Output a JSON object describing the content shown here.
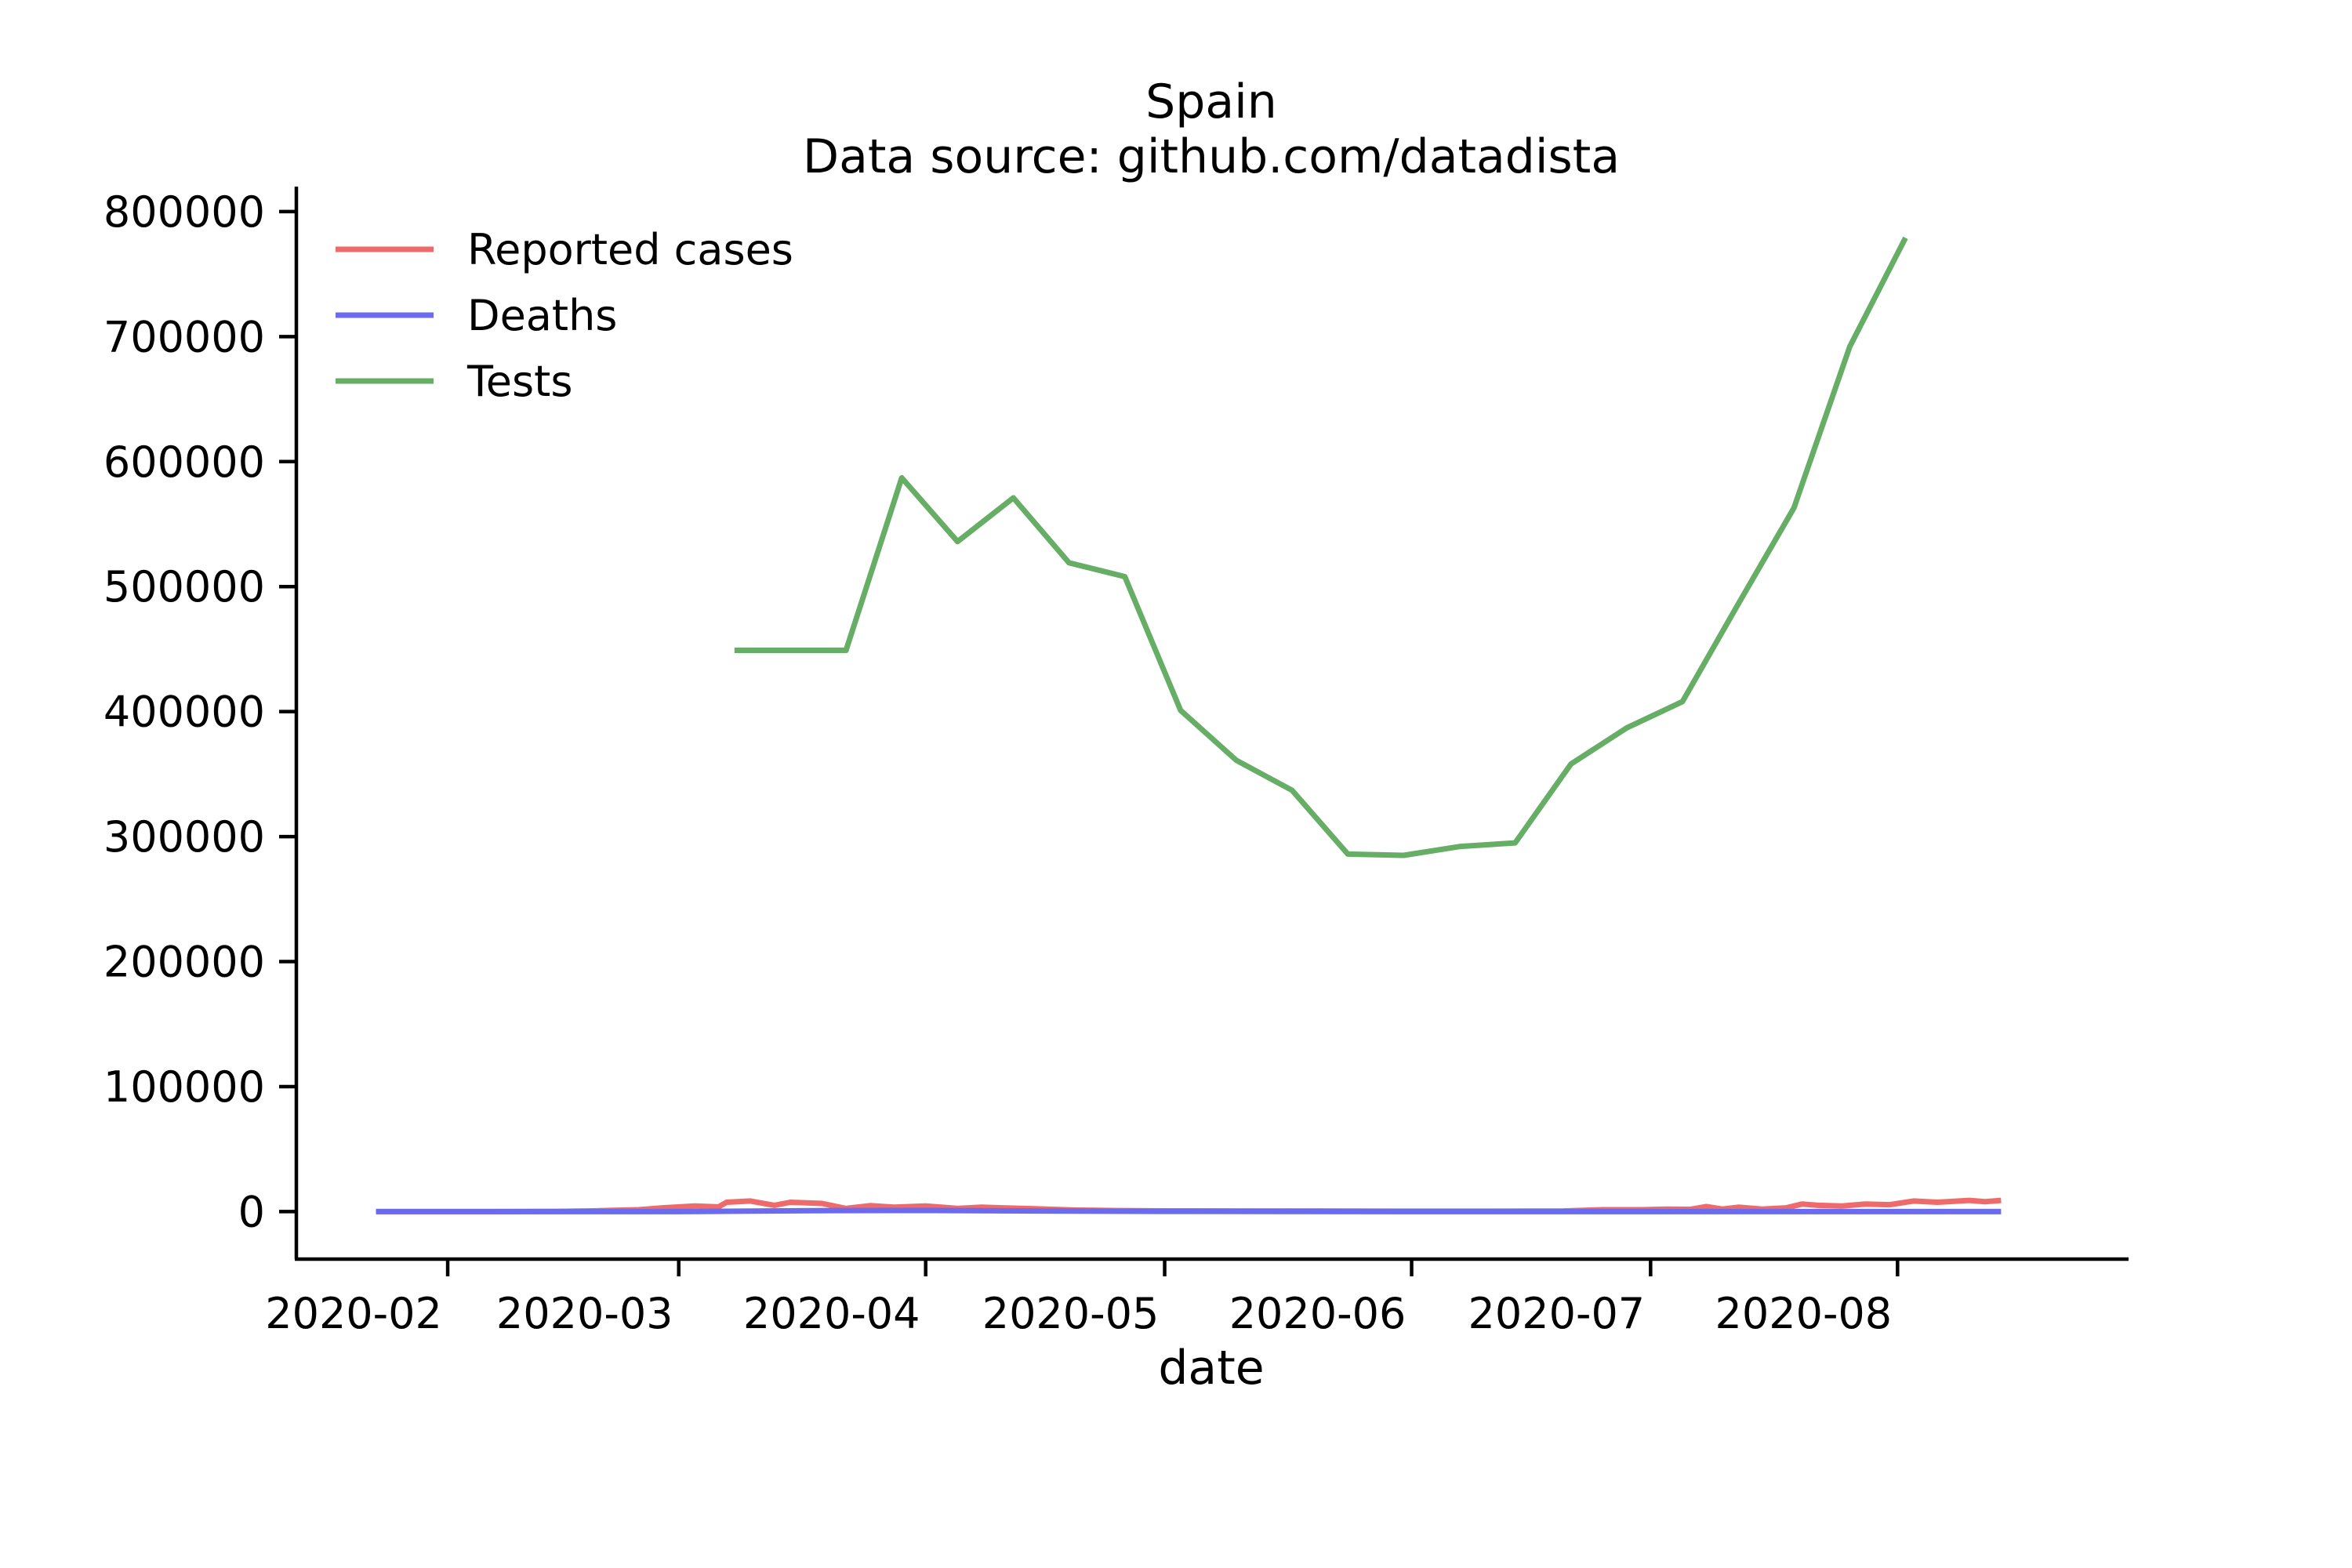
{
  "colors": {
    "reported_cases": "#ef6a6a",
    "deaths": "#6b6bf0",
    "tests": "#66ad66",
    "axis": "#000000"
  },
  "chart_data": {
    "type": "line",
    "title": "Spain",
    "subtitle": "Data source: github.com/datadista",
    "xlabel": "date",
    "ylabel": "",
    "x_axis": {
      "kind": "date",
      "range": [
        "2020-01-13",
        "2020-08-30"
      ],
      "ticks": [
        "2020-02",
        "2020-03",
        "2020-04",
        "2020-05",
        "2020-06",
        "2020-07",
        "2020-08"
      ],
      "tick_dates": [
        "2020-02-01",
        "2020-03-01",
        "2020-04-01",
        "2020-05-01",
        "2020-06-01",
        "2020-07-01",
        "2020-08-01"
      ]
    },
    "y_axis": {
      "range": [
        -38000,
        820000
      ],
      "ticks": [
        0,
        100000,
        200000,
        300000,
        400000,
        500000,
        600000,
        700000,
        800000
      ],
      "tick_labels": [
        "0",
        "100000",
        "200000",
        "300000",
        "400000",
        "500000",
        "600000",
        "700000",
        "800000"
      ]
    },
    "grid": false,
    "legend": {
      "placement": "top-left"
    },
    "series": [
      {
        "name": "Reported cases",
        "color_key": "reported_cases",
        "points": [
          [
            "2020-01-23",
            0
          ],
          [
            "2020-02-05",
            0
          ],
          [
            "2020-02-15",
            200
          ],
          [
            "2020-02-20",
            700
          ],
          [
            "2020-02-25",
            1500
          ],
          [
            "2020-02-28",
            3000
          ],
          [
            "2020-03-03",
            4500
          ],
          [
            "2020-03-06",
            3800
          ],
          [
            "2020-03-07",
            7500
          ],
          [
            "2020-03-10",
            8500
          ],
          [
            "2020-03-13",
            5000
          ],
          [
            "2020-03-15",
            7500
          ],
          [
            "2020-03-19",
            6500
          ],
          [
            "2020-03-22",
            2500
          ],
          [
            "2020-03-25",
            4800
          ],
          [
            "2020-03-28",
            3500
          ],
          [
            "2020-04-01",
            4500
          ],
          [
            "2020-04-05",
            2500
          ],
          [
            "2020-04-08",
            3500
          ],
          [
            "2020-04-15",
            2200
          ],
          [
            "2020-04-20",
            1200
          ],
          [
            "2020-04-25",
            800
          ],
          [
            "2020-05-01",
            600
          ],
          [
            "2020-05-10",
            500
          ],
          [
            "2020-05-20",
            500
          ],
          [
            "2020-06-01",
            300
          ],
          [
            "2020-06-10",
            300
          ],
          [
            "2020-06-20",
            500
          ],
          [
            "2020-06-25",
            1500
          ],
          [
            "2020-06-30",
            1500
          ],
          [
            "2020-07-03",
            2000
          ],
          [
            "2020-07-06",
            1800
          ],
          [
            "2020-07-08",
            4000
          ],
          [
            "2020-07-10",
            2000
          ],
          [
            "2020-07-12",
            3500
          ],
          [
            "2020-07-15",
            2000
          ],
          [
            "2020-07-18",
            3000
          ],
          [
            "2020-07-20",
            6000
          ],
          [
            "2020-07-22",
            5000
          ],
          [
            "2020-07-25",
            4500
          ],
          [
            "2020-07-28",
            6000
          ],
          [
            "2020-07-31",
            5500
          ],
          [
            "2020-08-03",
            8500
          ],
          [
            "2020-08-06",
            7500
          ],
          [
            "2020-08-10",
            9000
          ],
          [
            "2020-08-12",
            8000
          ],
          [
            "2020-08-14",
            9000
          ]
        ]
      },
      {
        "name": "Deaths",
        "color_key": "deaths",
        "points": [
          [
            "2020-01-23",
            0
          ],
          [
            "2020-03-01",
            0
          ],
          [
            "2020-03-20",
            800
          ],
          [
            "2020-04-02",
            900
          ],
          [
            "2020-04-15",
            500
          ],
          [
            "2020-05-01",
            200
          ],
          [
            "2020-06-01",
            0
          ],
          [
            "2020-07-01",
            0
          ],
          [
            "2020-08-14",
            0
          ]
        ]
      },
      {
        "name": "Tests",
        "color_key": "tests",
        "points": [
          [
            "2020-03-08",
            449000
          ],
          [
            "2020-03-22",
            449000
          ],
          [
            "2020-03-29",
            587000
          ],
          [
            "2020-04-05",
            536000
          ],
          [
            "2020-04-12",
            571000
          ],
          [
            "2020-04-19",
            519000
          ],
          [
            "2020-04-26",
            508000
          ],
          [
            "2020-05-03",
            401000
          ],
          [
            "2020-05-10",
            361000
          ],
          [
            "2020-05-17",
            337000
          ],
          [
            "2020-05-24",
            286000
          ],
          [
            "2020-05-31",
            285000
          ],
          [
            "2020-06-07",
            292000
          ],
          [
            "2020-06-14",
            295000
          ],
          [
            "2020-06-21",
            358000
          ],
          [
            "2020-06-28",
            387000
          ],
          [
            "2020-07-05",
            408000
          ],
          [
            "2020-07-12",
            486000
          ],
          [
            "2020-07-19",
            563000
          ],
          [
            "2020-07-26",
            692000
          ],
          [
            "2020-08-02",
            779000
          ]
        ]
      }
    ]
  }
}
